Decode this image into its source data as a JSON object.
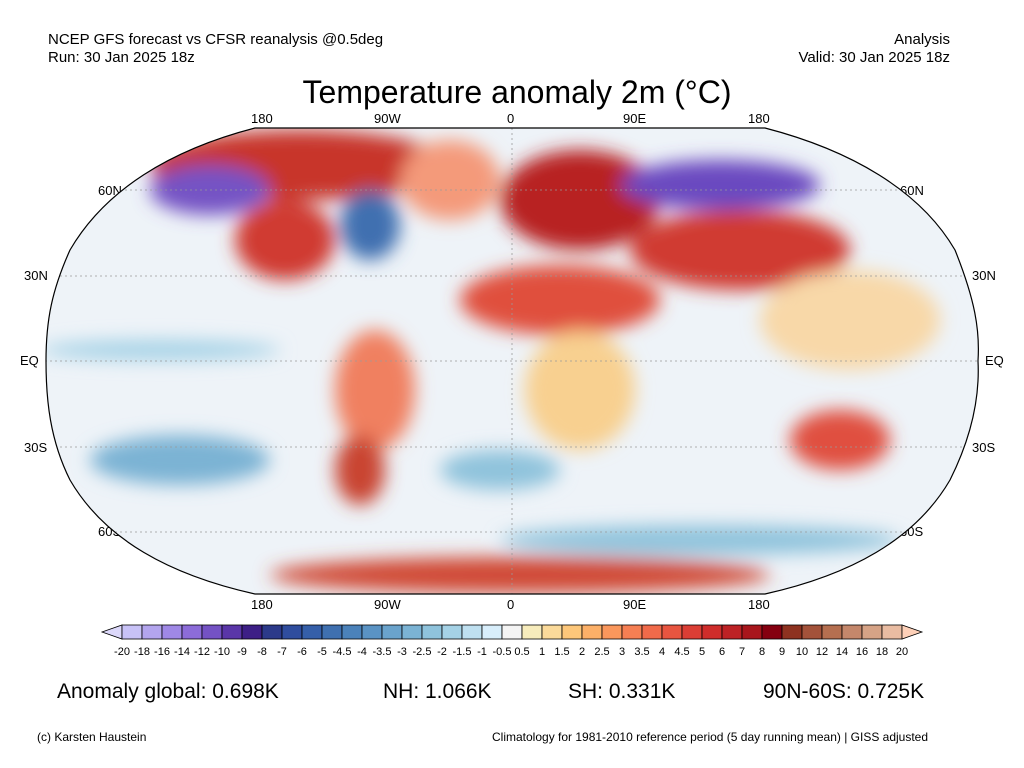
{
  "header": {
    "line1": "NCEP GFS forecast vs CFSR reanalysis @0.5deg",
    "line2": "Run: 30 Jan 2025 18z",
    "right1": "Analysis",
    "right2": "Valid: 30 Jan 2025 18z"
  },
  "title": "Temperature anomaly 2m (°C)",
  "lon_labels": [
    "180",
    "90W",
    "0",
    "90E",
    "180"
  ],
  "lat_labels": [
    "60N",
    "30N",
    "EQ",
    "30S",
    "60S"
  ],
  "colorbar": {
    "labels": [
      "-20",
      "-18",
      "-16",
      "-14",
      "-12",
      "-10",
      "-9",
      "-8",
      "-7",
      "-6",
      "-5",
      "-4.5",
      "-4",
      "-3.5",
      "-3",
      "-2.5",
      "-2",
      "-1.5",
      "-1",
      "-0.5",
      "0.5",
      "1",
      "1.5",
      "2",
      "2.5",
      "3",
      "3.5",
      "4",
      "4.5",
      "5",
      "6",
      "7",
      "8",
      "9",
      "10",
      "12",
      "14",
      "16",
      "18",
      "20"
    ],
    "colors": [
      "#c8c2f7",
      "#b3a5ee",
      "#9f88e6",
      "#8c6cd9",
      "#7452c4",
      "#5a36a8",
      "#3d1f86",
      "#2c3a8a",
      "#2f4d9e",
      "#355fa9",
      "#3f70b0",
      "#4b82ba",
      "#5a93c4",
      "#6aa3cc",
      "#7bb3d4",
      "#8fc3dc",
      "#a5d2e6",
      "#bfe0f0",
      "#d8eefb",
      "#f4f4f4",
      "#f7ecbc",
      "#fbda9a",
      "#fdc77a",
      "#fcb068",
      "#fa975c",
      "#f67f53",
      "#f06a4a",
      "#e85540",
      "#db3e35",
      "#cf2d2b",
      "#bd2225",
      "#a8161c",
      "#850010",
      "#8e3220",
      "#a3523a",
      "#b56f50",
      "#c4876b",
      "#d6a386",
      "#e9bca2"
    ],
    "low_arrow_color": "#dcd8fa",
    "high_arrow_color": "#fdd0b8"
  },
  "stats": {
    "global": "Anomaly global: 0.698K",
    "nh": "NH: 1.066K",
    "sh": "SH: 0.331K",
    "arctic": "90N-60S: 0.725K"
  },
  "footer": {
    "left": "(c) Karsten Haustein",
    "right": "Climatology for 1981-2010 reference period (5 day running mean) | GISS adjusted"
  }
}
